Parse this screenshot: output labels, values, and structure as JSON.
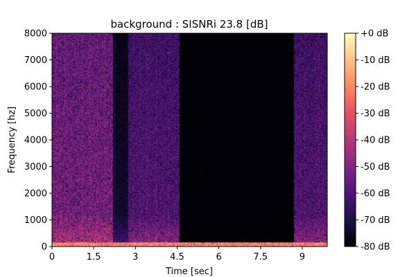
{
  "chart_data": {
    "type": "heatmap",
    "title": "background : SISNRi 23.8 [dB]",
    "xlabel": "Time [sec]",
    "ylabel": "Frequency [hz]",
    "xlim": [
      0,
      9.9
    ],
    "ylim": [
      0,
      8000
    ],
    "x_ticks": [
      "0",
      "1.5",
      "3",
      "4.5",
      "6",
      "7.5",
      "9"
    ],
    "x_tick_values": [
      0,
      1.5,
      3,
      4.5,
      6,
      7.5,
      9
    ],
    "y_ticks": [
      "0",
      "1000",
      "2000",
      "3000",
      "4000",
      "5000",
      "6000",
      "7000",
      "8000"
    ],
    "y_tick_values": [
      0,
      1000,
      2000,
      3000,
      4000,
      5000,
      6000,
      7000,
      8000
    ],
    "colorbar": {
      "labels": [
        "+0 dB",
        "-10 dB",
        "-20 dB",
        "-30 dB",
        "-40 dB",
        "-50 dB",
        "-60 dB",
        "-70 dB",
        "-80 dB"
      ],
      "values": [
        0,
        -10,
        -20,
        -30,
        -40,
        -50,
        -60,
        -70,
        -80
      ],
      "range": [
        -80,
        0
      ],
      "colormap": "magma"
    },
    "energy_segments": [
      {
        "start": 0,
        "end": 2.2,
        "level": "high"
      },
      {
        "start": 2.2,
        "end": 2.75,
        "level": "low"
      },
      {
        "start": 2.75,
        "end": 4.6,
        "level": "medium"
      },
      {
        "start": 4.6,
        "end": 8.7,
        "level": "silent"
      },
      {
        "start": 8.7,
        "end": 9.9,
        "level": "medium"
      }
    ],
    "grid": false
  }
}
